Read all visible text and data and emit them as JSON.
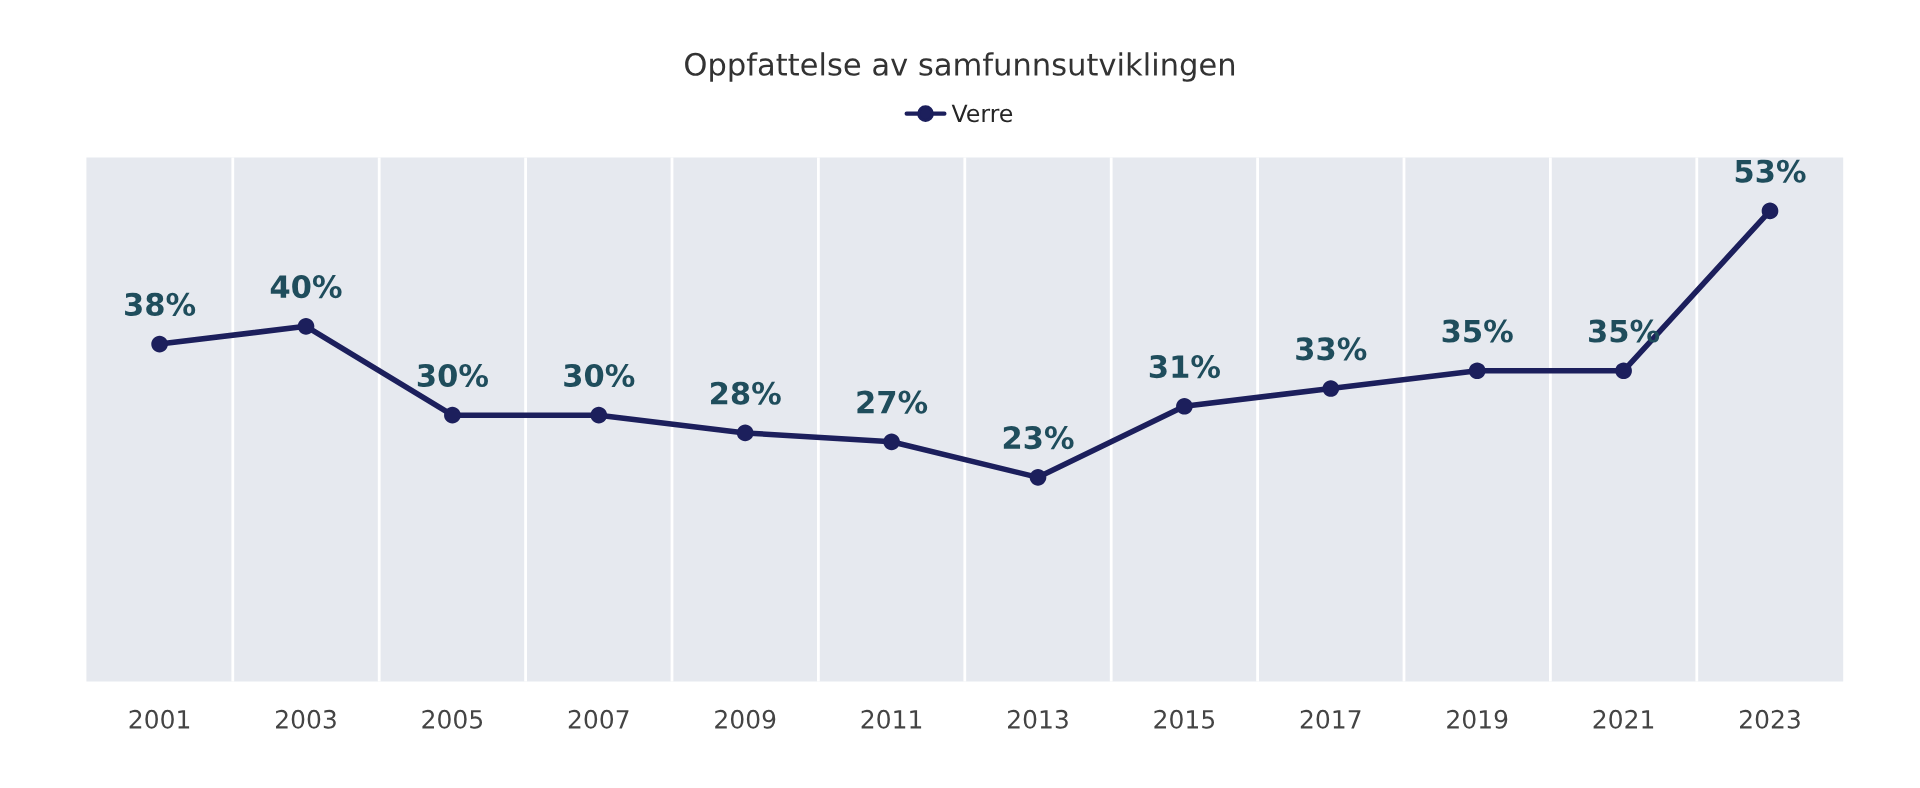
{
  "chart_data": {
    "type": "line",
    "title": "Oppfattelse av samfunnsutviklingen",
    "categories": [
      "2001",
      "2003",
      "2005",
      "2007",
      "2009",
      "2011",
      "2013",
      "2015",
      "2017",
      "2019",
      "2021",
      "2023"
    ],
    "series": [
      {
        "name": "Verre",
        "color": "#1c1f5c",
        "values": [
          38,
          40,
          30,
          30,
          28,
          27,
          23,
          31,
          33,
          35,
          35,
          53
        ],
        "value_labels": [
          "38%",
          "40%",
          "30%",
          "30%",
          "28%",
          "27%",
          "23%",
          "31%",
          "33%",
          "35%",
          "35%",
          "53%"
        ]
      }
    ],
    "ylim": [
      0,
      59
    ],
    "tick_labels": "x",
    "grid": "x",
    "legend": "top",
    "marker": "circle",
    "line_style": "solid"
  }
}
